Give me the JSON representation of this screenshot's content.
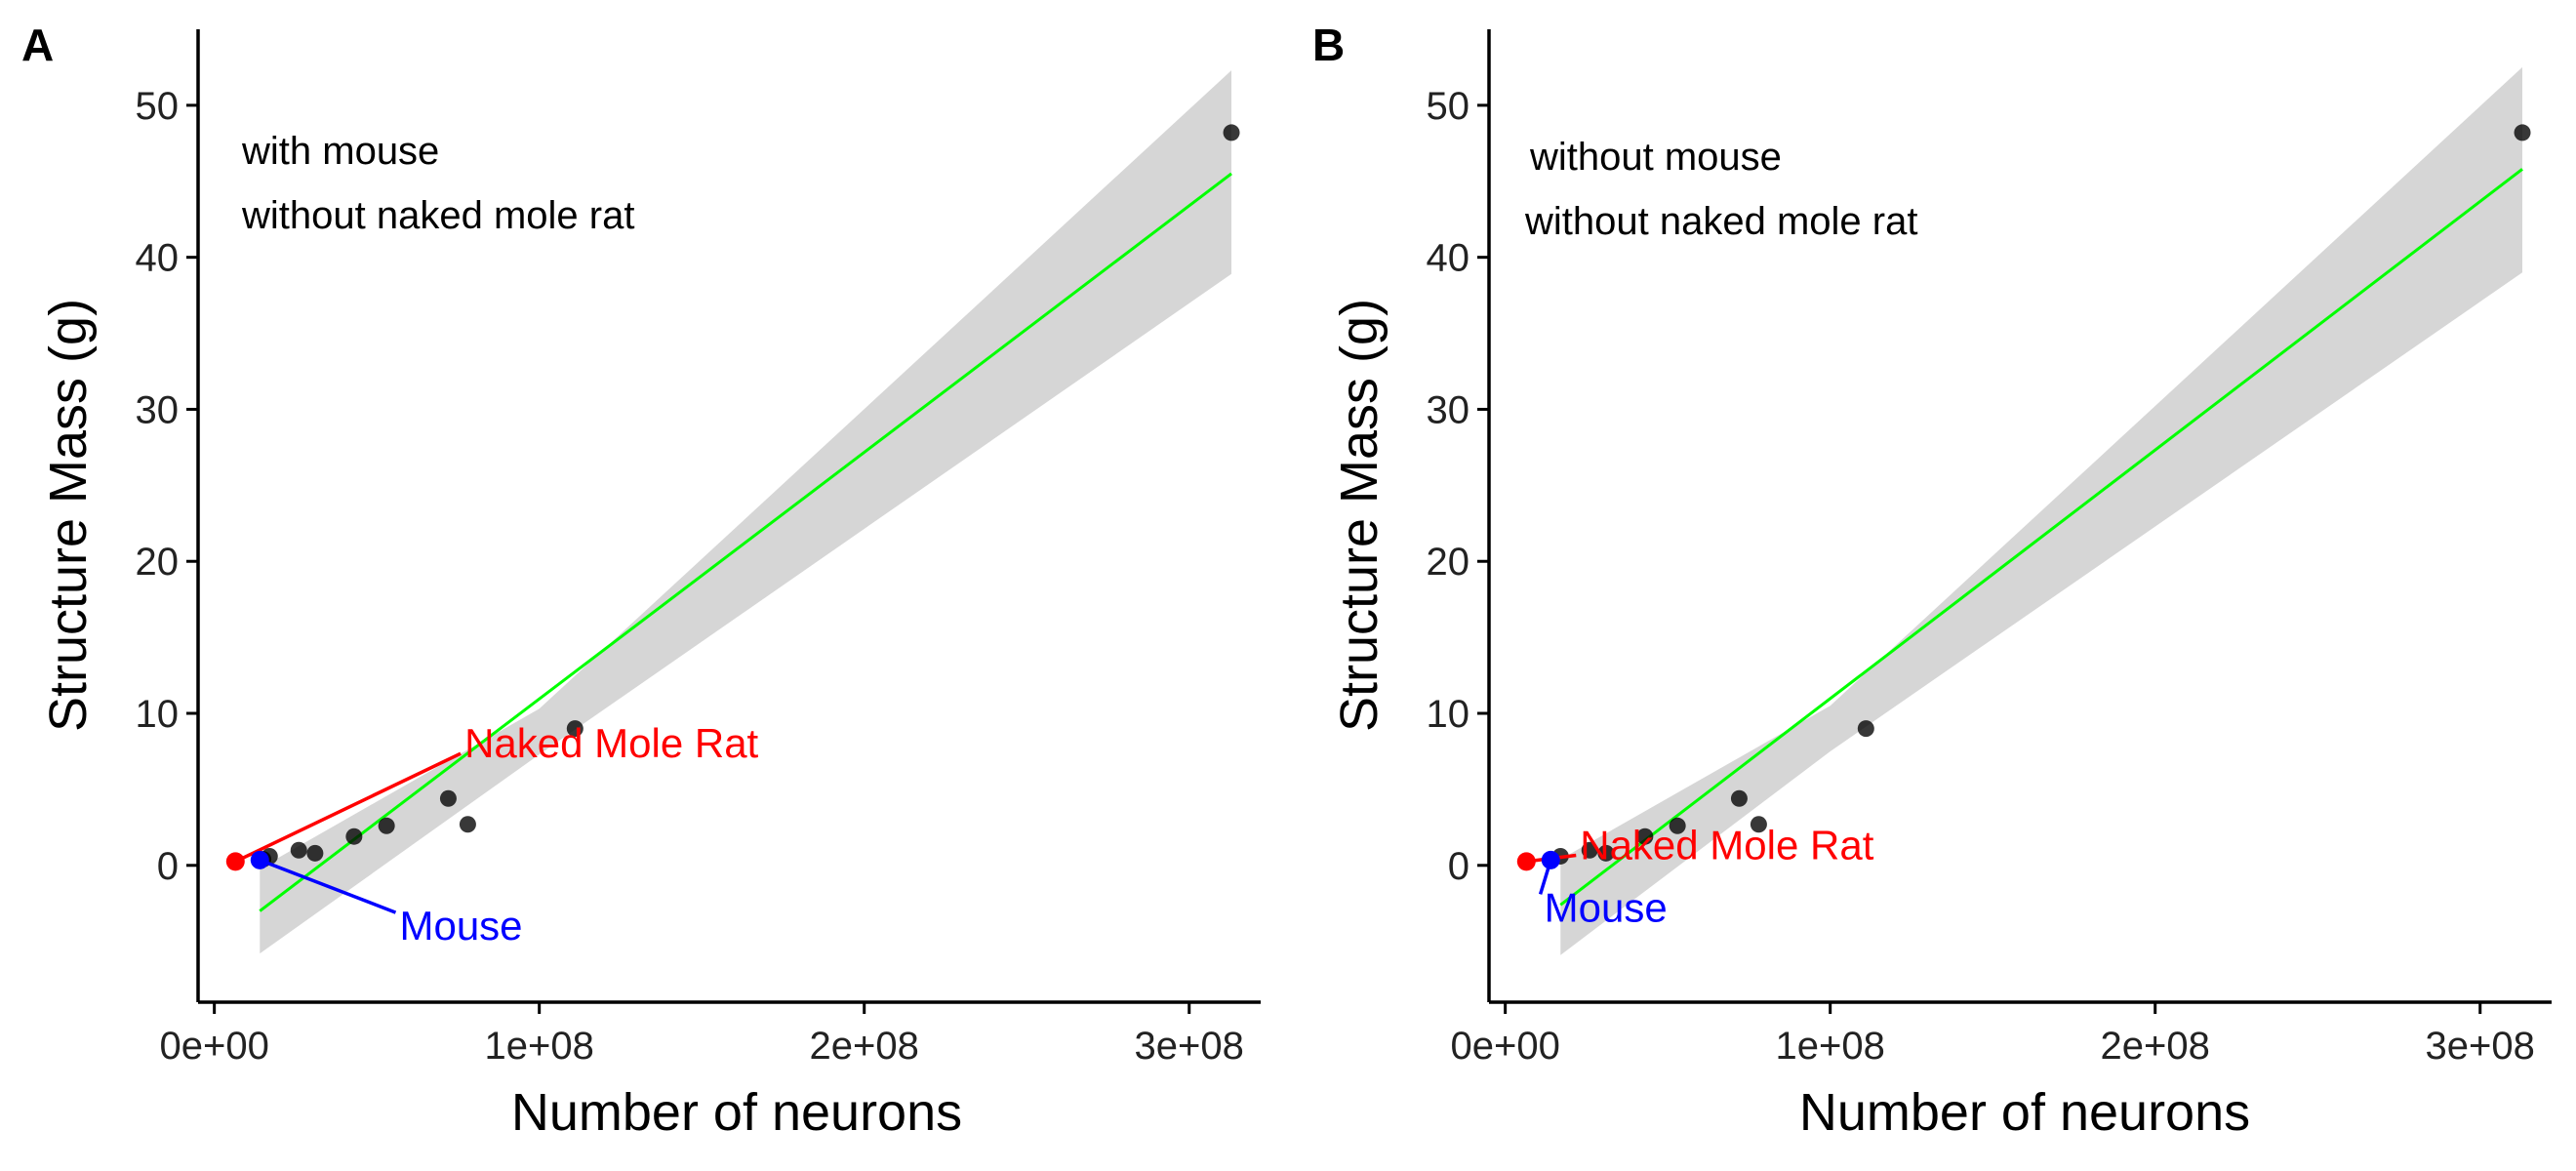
{
  "chart_data": [
    {
      "type": "scatter",
      "panel_label": "A",
      "annotations": [
        "with mouse",
        "without naked mole rat"
      ],
      "xlabel": "Number of neurons",
      "ylabel": "Structure Mass (g)",
      "xlim": [
        -5000000,
        322000000
      ],
      "ylim": [
        -9,
        55
      ],
      "x_ticks": [
        0,
        100000000,
        200000000,
        300000000
      ],
      "x_tick_labels": [
        "0e+00",
        "1e+08",
        "2e+08",
        "3e+08"
      ],
      "y_ticks": [
        0,
        10,
        20,
        30,
        40,
        50
      ],
      "y_tick_labels": [
        "0",
        "10",
        "20",
        "30",
        "40",
        "50"
      ],
      "points": [
        {
          "x": 15000000,
          "y": 0.4
        },
        {
          "x": 17000000,
          "y": 0.6
        },
        {
          "x": 26000000,
          "y": 1.0
        },
        {
          "x": 31000000,
          "y": 0.8
        },
        {
          "x": 43000000,
          "y": 1.9
        },
        {
          "x": 53000000,
          "y": 2.6
        },
        {
          "x": 72000000,
          "y": 4.4
        },
        {
          "x": 78000000,
          "y": 2.7
        },
        {
          "x": 111000000,
          "y": 9.0
        },
        {
          "x": 313000000,
          "y": 48.2
        }
      ],
      "highlights": [
        {
          "name": "Naked Mole Rat",
          "x": 6500000,
          "y": 0.25,
          "color": "#ff0000",
          "label_x": 77000000,
          "label_y": 8.0,
          "label_anchor": "start"
        },
        {
          "name": "Mouse",
          "x": 14000000,
          "y": 0.35,
          "color": "#0000ff",
          "label_x": 57000000,
          "label_y": -4.0,
          "label_anchor": "start"
        }
      ],
      "fit": {
        "x0": 14000000,
        "x1": 313000000,
        "y0": -3.0,
        "y1": 45.5,
        "color": "#00ff00"
      },
      "ci": {
        "x0": 14000000,
        "x1": 313000000,
        "lower0": -5.8,
        "upper0": -0.2,
        "lower1": 38.9,
        "upper1": 52.3,
        "pivot_x": 100000000,
        "pivot_lower": 7.3,
        "pivot_upper": 10.3
      }
    },
    {
      "type": "scatter",
      "panel_label": "B",
      "annotations": [
        "without mouse",
        "without naked mole rat"
      ],
      "xlabel": "Number of neurons",
      "ylabel": "Structure Mass (g)",
      "xlim": [
        -5000000,
        322000000
      ],
      "ylim": [
        -9,
        55
      ],
      "x_ticks": [
        0,
        100000000,
        200000000,
        300000000
      ],
      "x_tick_labels": [
        "0e+00",
        "1e+08",
        "2e+08",
        "3e+08"
      ],
      "y_ticks": [
        0,
        10,
        20,
        30,
        40,
        50
      ],
      "y_tick_labels": [
        "0",
        "10",
        "20",
        "30",
        "40",
        "50"
      ],
      "points": [
        {
          "x": 17000000,
          "y": 0.6
        },
        {
          "x": 26000000,
          "y": 1.0
        },
        {
          "x": 31000000,
          "y": 0.8
        },
        {
          "x": 43000000,
          "y": 1.9
        },
        {
          "x": 53000000,
          "y": 2.6
        },
        {
          "x": 72000000,
          "y": 4.4
        },
        {
          "x": 78000000,
          "y": 2.7
        },
        {
          "x": 111000000,
          "y": 9.0
        },
        {
          "x": 313000000,
          "y": 48.2
        }
      ],
      "highlights": [
        {
          "name": "Naked Mole Rat",
          "x": 6500000,
          "y": 0.25,
          "color": "#ff0000",
          "label_x": 23000000,
          "label_y": 1.3,
          "label_anchor": "start"
        },
        {
          "name": "Mouse",
          "x": 14000000,
          "y": 0.35,
          "color": "#0000ff",
          "label_x": 12000000,
          "label_y": -2.8,
          "label_anchor": "start"
        }
      ],
      "fit": {
        "x0": 17000000,
        "x1": 313000000,
        "y0": -2.6,
        "y1": 45.8,
        "color": "#00ff00"
      },
      "ci": {
        "x0": 17000000,
        "x1": 313000000,
        "lower0": -5.9,
        "upper0": 0.4,
        "lower1": 39.0,
        "upper1": 52.5,
        "pivot_x": 100000000,
        "pivot_lower": 7.5,
        "pivot_upper": 10.5
      }
    }
  ]
}
